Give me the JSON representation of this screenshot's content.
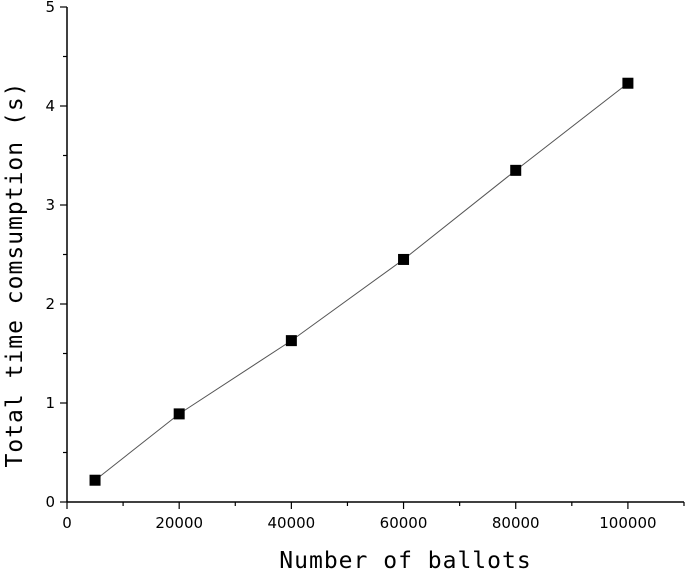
{
  "chart_data": {
    "type": "line",
    "title": "",
    "xlabel": "Number of ballots",
    "ylabel": "Total time comsumption (s)",
    "xlim": [
      0,
      110000
    ],
    "ylim": [
      0,
      5
    ],
    "x_ticks": [
      0,
      20000,
      40000,
      60000,
      80000,
      100000
    ],
    "y_ticks": [
      0,
      1,
      2,
      3,
      4,
      5
    ],
    "grid": false,
    "legend": "none",
    "marker": "square",
    "series": [
      {
        "x": [
          5000,
          20000,
          40000,
          60000,
          80000,
          100000
        ],
        "y": [
          0.22,
          0.89,
          1.63,
          2.45,
          3.35,
          4.23
        ]
      }
    ],
    "colors": {
      "line": "#555555",
      "marker": "#000000",
      "axis": "#000000"
    }
  }
}
